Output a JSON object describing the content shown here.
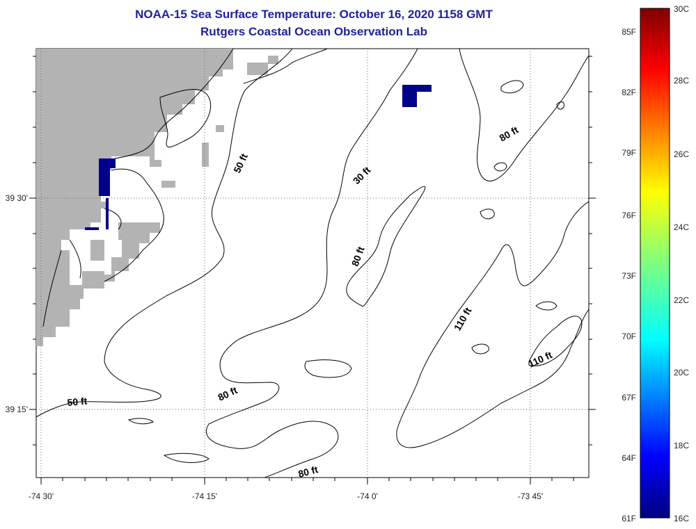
{
  "title": {
    "line1": "NOAA-15 Sea Surface Temperature:  October 16, 2020 1158 GMT",
    "line2": "Rutgers Coastal Ocean Observation Lab"
  },
  "axes": {
    "x_labels": [
      "-74 30'",
      "-74 15'",
      "-74 0'",
      "-73 45'"
    ],
    "y_labels": [
      "39 30'",
      "39 15'"
    ]
  },
  "contour_labels": [
    "50 ft",
    "30 ft",
    "80 ft",
    "80 ft",
    "110 ft",
    "110 ft",
    "50 ft",
    "80 ft",
    "80 ft"
  ],
  "colorbar": {
    "fahrenheit": [
      "85F",
      "82F",
      "79F",
      "76F",
      "73F",
      "70F",
      "67F",
      "64F",
      "61F"
    ],
    "celsius": [
      "30C",
      "28C",
      "26C",
      "24C",
      "22C",
      "20C",
      "18C",
      "16C"
    ]
  },
  "colors": {
    "land": "#b3b3b3",
    "cloud_mask": "#00008b",
    "title": "#1f1f9e"
  }
}
